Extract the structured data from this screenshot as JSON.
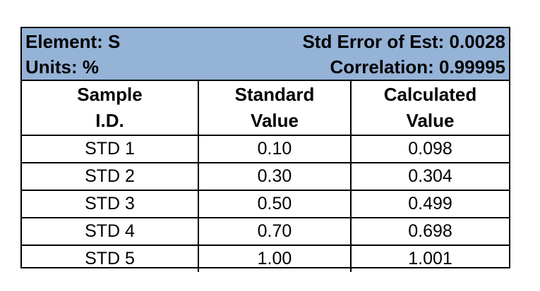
{
  "header": {
    "element": "Element: S",
    "units": "Units: %",
    "std_error": "Std Error of Est:  0.0028",
    "correlation": "Correlation:  0.99995"
  },
  "columns": [
    [
      "Sample",
      "I.D."
    ],
    [
      "Standard",
      "Value"
    ],
    [
      "Calculated",
      "Value"
    ]
  ],
  "chart_data": {
    "type": "table",
    "columns": [
      "Sample I.D.",
      "Standard Value",
      "Calculated Value"
    ],
    "rows": [
      [
        "STD 1",
        "0.10",
        "0.098"
      ],
      [
        "STD 2",
        "0.30",
        "0.304"
      ],
      [
        "STD 3",
        "0.50",
        "0.499"
      ],
      [
        "STD 4",
        "0.70",
        "0.698"
      ],
      [
        "STD 5",
        "1.00",
        "1.001"
      ]
    ]
  },
  "colors": {
    "header_bg": "#95b3d7",
    "border": "#000000"
  }
}
